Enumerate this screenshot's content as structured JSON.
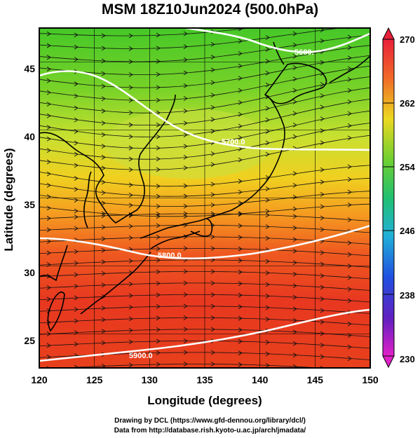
{
  "title": "MSM 18Z10Jun2024 (500.0hPa)",
  "map": {
    "region": "Japan and surrounding seas",
    "lon_range": [
      120,
      150
    ],
    "lat_range": [
      22.5,
      47.5
    ],
    "xlabel": "Longitude (degrees)",
    "ylabel": "Latitude  (degrees)",
    "x_ticks": [
      "120",
      "125",
      "130",
      "135",
      "140",
      "145",
      "150"
    ],
    "y_ticks": [
      "25",
      "30",
      "35",
      "40",
      "45"
    ],
    "grid": true,
    "field": "temperature (K), color shading",
    "vectors": "wind streamlines with arrows, westerly flow"
  },
  "colorbar": {
    "ticks": [
      "270",
      "262",
      "254",
      "246",
      "238",
      "230"
    ],
    "range": [
      230,
      270
    ],
    "colors": [
      "#e8203a",
      "#f08020",
      "#e8e020",
      "#60d030",
      "#20c090",
      "#20a8e0",
      "#2030d0",
      "#8020c0",
      "#e020c0"
    ]
  },
  "contours": [
    {
      "label": "5600.",
      "value": 5600
    },
    {
      "label": "5700.0",
      "value": 5700
    },
    {
      "label": "5800.0",
      "value": 5800
    },
    {
      "label": "5900.0",
      "value": 5900
    }
  ],
  "credits": [
    "Drawing by DCL (https://www.gfd-dennou.org/library/dcl/)",
    "Data from http://database.rish.kyoto-u.ac.jp/arch/jmadata/"
  ]
}
